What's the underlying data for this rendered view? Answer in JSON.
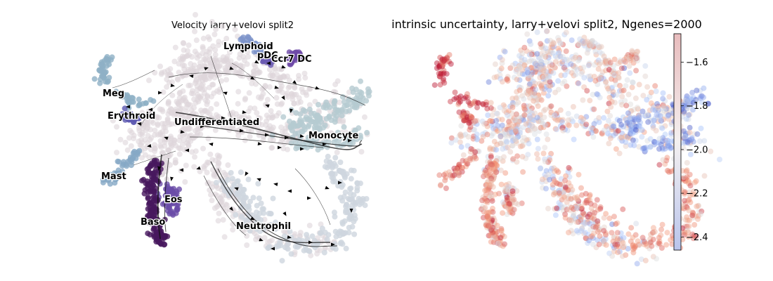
{
  "chart_data": [
    {
      "type": "scatter",
      "title": "Velocity larry+velovi split2",
      "embedding": "velocity stream plot on 2D embedding",
      "grid": false,
      "axes_visible": false,
      "cluster_labels": [
        "Lymphoid",
        "pDC",
        "Ccr7 DC",
        "Meg",
        "Erythroid",
        "Undifferentiated",
        "Monocyte",
        "Mast",
        "Eos",
        "Baso",
        "Neutrophil"
      ],
      "cluster_colors": {
        "Lymphoid": "#7d93c9",
        "pDC": "#6a5ab1",
        "Ccr7 DC": "#6e4aa8",
        "Meg": "#8fb0c6",
        "Erythroid": "#5b57b0",
        "Undifferentiated": "#ddd5da",
        "Monocyte": "#b5cbd1",
        "Mast": "#86a9c6",
        "Eos": "#6a4ca8",
        "Baso": "#47185e",
        "Neutrophil": "#ced6de"
      }
    },
    {
      "type": "scatter",
      "title": "intrinsic uncertainty, larry+velovi split2, Ngenes=2000",
      "grid": false,
      "axes_visible": false,
      "colormap": "coolwarm",
      "colorbar": {
        "vmin": -2.46,
        "vmax": -1.47,
        "ticks": [
          -1.6,
          -1.8,
          -2.0,
          -2.2,
          -2.4
        ],
        "tick_labels": [
          "−1.6",
          "−1.8",
          "−2.0",
          "−2.2",
          "−2.4"
        ],
        "placement": "right"
      }
    }
  ]
}
